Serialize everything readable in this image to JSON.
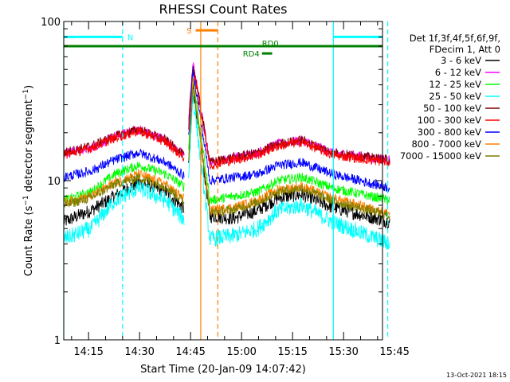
{
  "chart_data": {
    "type": "line",
    "title": "RHESSI Count Rates",
    "xlabel": "Start Time (20-Jan-09 14:07:42)",
    "ylabel": "Count Rate (s⁻¹ detector segment⁻¹)",
    "ylabel_parts": [
      "Count Rate (s",
      "−1",
      " detector segment",
      "−1",
      ")"
    ],
    "y_scale": "log",
    "ylim": [
      1,
      100
    ],
    "xlim": [
      "14:07:42",
      "14:48:00"
    ],
    "x_ticks": [
      "14:15",
      "14:30",
      "14:45",
      "15:00",
      "15:15",
      "15:30",
      "15:45"
    ],
    "y_ticks": [
      "1",
      "10",
      "100"
    ],
    "footer": "13-Oct-2021 18:15",
    "legend_header": [
      "Det 1f,3f,4f,5f,6f,9f,",
      "FDecim 1, Att 0"
    ],
    "legend_position": "right",
    "series": [
      {
        "name": "3 - 6 keV",
        "color": "#000000",
        "key": [
          5.5,
          6.5,
          8.0,
          9.8,
          8.5,
          6.5,
          40,
          6.0,
          5.8,
          6.5,
          7.8,
          8.2,
          6.8,
          5.5
        ]
      },
      {
        "name": "6 - 12 keV",
        "color": "#ff00ff",
        "key": [
          15,
          16,
          19,
          21,
          18,
          14,
          55,
          13,
          14,
          15,
          17,
          18,
          15,
          13.5
        ]
      },
      {
        "name": "12 - 25 keV",
        "color": "#00ff00",
        "key": [
          7.5,
          8.5,
          11,
          12.5,
          11,
          9,
          45,
          7.5,
          8.0,
          8.5,
          10,
          10.5,
          9,
          7.5
        ]
      },
      {
        "name": "25 - 50 keV",
        "color": "#00ffff",
        "key": [
          4.3,
          5.0,
          7.5,
          9.0,
          7.5,
          5.5,
          35,
          4.3,
          4.5,
          5.0,
          6.5,
          7.0,
          5.5,
          4.0
        ]
      },
      {
        "name": "50 - 100 keV",
        "color": "#7f0000",
        "key": [
          15,
          16.5,
          19,
          21,
          18,
          14,
          55,
          13,
          14,
          15,
          17,
          18,
          15,
          13.5
        ]
      },
      {
        "name": "100 - 300 keV",
        "color": "#ff0000",
        "key": [
          14.5,
          16,
          18.5,
          20.5,
          17.5,
          13.5,
          54,
          12.5,
          13.5,
          14.5,
          16.5,
          17.5,
          14.5,
          13
        ]
      },
      {
        "name": "300 - 800 keV",
        "color": "#0000ff",
        "key": [
          10.5,
          11.5,
          13.5,
          15,
          13,
          10.5,
          50,
          10.0,
          10.5,
          11,
          12.5,
          13,
          11,
          9.0
        ]
      },
      {
        "name": "800 - 7000 keV",
        "color": "#ff8000",
        "key": [
          7.3,
          8.0,
          9.8,
          11,
          9.5,
          7.5,
          42,
          6.5,
          6.8,
          7.5,
          8.8,
          9.2,
          7.8,
          6.2
        ]
      },
      {
        "name": "7000 - 15000 keV",
        "color": "#7f7f00",
        "key": [
          7.0,
          7.8,
          9.5,
          10.5,
          9.2,
          7.2,
          40,
          6.3,
          6.6,
          7.3,
          8.5,
          9.0,
          7.5,
          6.0
        ]
      }
    ],
    "series_x_minutes": [
      0,
      8,
      15,
      22,
      30,
      36,
      38,
      43,
      50,
      57,
      63,
      70,
      79,
      96
    ],
    "annotations": [
      {
        "label": "N",
        "color": "#00ffff",
        "x_range": [
          "14:07:42",
          "14:25:00"
        ],
        "y": 80
      },
      {
        "label": "",
        "color": "#00ffff",
        "x_range": [
          "15:27:00",
          "15:45:00"
        ],
        "y": 80
      },
      {
        "label": "S",
        "color": "#ff8000",
        "x_range": [
          "14:46:30",
          "14:53:00"
        ],
        "y": 88
      },
      {
        "label": "RD0",
        "color": "#008000",
        "x_range": [
          "14:07:42",
          "15:45:00"
        ],
        "y": 70
      },
      {
        "label": "RD4",
        "color": "#008000",
        "x_range": [
          "15:06:00",
          "15:09:00"
        ],
        "y": 63
      }
    ],
    "vertical_lines": [
      {
        "time": "14:07:42",
        "color": "#00ffff",
        "style": "solid"
      },
      {
        "time": "14:25:00",
        "color": "#00ffff",
        "style": "dashed"
      },
      {
        "time": "14:48:00",
        "color": "#ff8000",
        "style": "solid"
      },
      {
        "time": "14:53:00",
        "color": "#ff8000",
        "style": "dashed"
      },
      {
        "time": "15:27:00",
        "color": "#00ffff",
        "style": "solid"
      },
      {
        "time": "15:43:00",
        "color": "#00ffff",
        "style": "dashed"
      }
    ]
  }
}
